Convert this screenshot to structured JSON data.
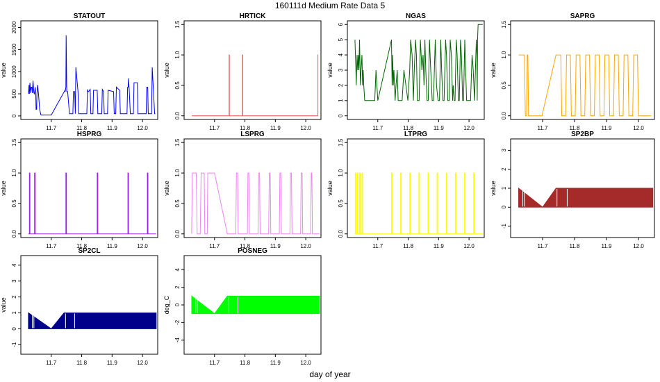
{
  "figure": {
    "title": "160111d   Medium Rate Data 5",
    "xlabel": "day of year"
  },
  "chart_data": [
    {
      "type": "line",
      "title": "STATOUT",
      "ylabel": "value",
      "xlabel": "",
      "color": "#0000ff",
      "xlim": [
        11.6,
        12.05
      ],
      "ylim": [
        -80,
        2150
      ],
      "xticks": [
        11.7,
        11.8,
        11.9,
        12.0
      ],
      "yticks": [
        0,
        500,
        1000,
        1500,
        2000
      ],
      "series": [
        {
          "x": [
            11.625,
            11.627,
            11.628,
            11.63,
            11.632,
            11.634,
            11.636,
            11.638,
            11.64,
            11.643,
            11.645,
            11.647,
            11.649,
            11.65,
            11.652,
            11.653,
            11.655,
            11.658,
            11.662,
            11.666,
            11.668,
            11.671,
            11.673,
            11.675,
            11.68,
            11.7,
            11.745,
            11.746,
            11.748,
            11.749,
            11.751,
            11.754,
            11.76,
            11.771,
            11.773,
            11.777,
            11.779,
            11.781,
            11.788,
            11.79,
            11.791,
            11.793,
            11.795,
            11.797,
            11.799,
            11.807,
            11.817,
            11.819,
            11.821,
            11.823,
            11.828,
            11.83,
            11.837,
            11.839,
            11.851,
            11.853,
            11.856,
            11.866,
            11.868,
            11.872,
            11.874,
            11.885,
            11.887,
            11.905,
            11.907,
            11.912,
            11.914,
            11.925,
            11.927,
            11.949,
            11.951,
            11.953,
            11.954,
            11.956,
            11.96,
            11.97,
            11.972,
            11.983,
            11.985,
            12.012,
            12.014,
            12.017,
            12.019,
            12.03,
            12.032,
            12.04,
            12.041,
            12.042
          ],
          "y": [
            500,
            700,
            500,
            750,
            520,
            650,
            650,
            520,
            800,
            520,
            500,
            650,
            500,
            150,
            150,
            500,
            700,
            500,
            150,
            20,
            20,
            20,
            20,
            20,
            20,
            20,
            580,
            550,
            650,
            1820,
            550,
            550,
            50,
            50,
            550,
            550,
            50,
            1100,
            550,
            50,
            50,
            50,
            50,
            50,
            50,
            50,
            50,
            600,
            550,
            550,
            600,
            50,
            50,
            580,
            580,
            50,
            50,
            50,
            600,
            550,
            50,
            50,
            580,
            550,
            50,
            50,
            650,
            580,
            50,
            50,
            650,
            650,
            850,
            650,
            50,
            50,
            750,
            750,
            50,
            50,
            650,
            650,
            50,
            50,
            1100,
            50,
            50,
            50
          ]
        }
      ]
    },
    {
      "type": "line",
      "title": "HRTICK",
      "ylabel": "value",
      "xlabel": "",
      "color": "#ee5555",
      "xlim": [
        11.6,
        12.05
      ],
      "ylim": [
        -0.06,
        1.56
      ],
      "xticks": [
        11.7,
        11.8,
        11.9,
        12.0
      ],
      "yticks": [
        0.0,
        0.5,
        1.0,
        1.5
      ],
      "series": [
        {
          "x": [
            11.625,
            11.748,
            11.748,
            11.749,
            11.749,
            11.792,
            11.792,
            11.793,
            11.793,
            12.04,
            12.04,
            12.041
          ],
          "y": [
            0,
            0,
            1,
            1,
            0,
            0,
            1,
            1,
            0,
            0,
            1,
            1
          ]
        }
      ]
    },
    {
      "type": "line",
      "title": "NGAS",
      "ylabel": "value",
      "xlabel": "",
      "color": "#006400",
      "xlim": [
        11.6,
        12.05
      ],
      "ylim": [
        -0.24,
        6.24
      ],
      "xticks": [
        11.7,
        11.8,
        11.9,
        12.0
      ],
      "yticks": [
        0,
        1,
        2,
        3,
        4,
        5,
        6
      ],
      "series": [
        {
          "x": [
            11.625,
            11.628,
            11.629,
            11.632,
            11.634,
            11.636,
            11.638,
            11.64,
            11.643,
            11.645,
            11.648,
            11.65,
            11.652,
            11.654,
            11.657,
            11.66,
            11.661,
            11.665,
            11.69,
            11.694,
            11.7,
            11.745,
            11.747,
            11.748,
            11.749,
            11.751,
            11.753,
            11.757,
            11.76,
            11.764,
            11.767,
            11.768,
            11.772,
            11.78,
            11.786,
            11.799,
            11.805,
            11.808,
            11.813,
            11.817,
            11.82,
            11.824,
            11.827,
            11.83,
            11.836,
            11.84,
            11.845,
            11.849,
            11.852,
            11.855,
            11.858,
            11.862,
            11.866,
            11.87,
            11.874,
            11.879,
            11.883,
            11.889,
            11.893,
            11.898,
            11.903,
            11.907,
            11.91,
            11.914,
            11.918,
            11.923,
            11.926,
            11.93,
            11.935,
            11.938,
            11.942,
            11.946,
            11.948,
            11.951,
            11.954,
            11.958,
            11.961,
            11.965,
            11.968,
            11.972,
            11.975,
            11.979,
            11.982,
            11.986,
            11.992,
            11.999,
            12.005,
            12.01,
            12.014,
            12.018,
            12.021,
            12.024,
            12.026,
            12.027,
            12.028,
            12.03,
            12.032,
            12.045
          ],
          "y": [
            5,
            3,
            2,
            4,
            3,
            4,
            3,
            5,
            2,
            3,
            4,
            2,
            3,
            2,
            1,
            1,
            1,
            1,
            1,
            3,
            1,
            5,
            2,
            3,
            4,
            2,
            3,
            1,
            2,
            3,
            1,
            1,
            1,
            1,
            3,
            1,
            3,
            5,
            4,
            1,
            3,
            5,
            4,
            1,
            1,
            5,
            3,
            4,
            2,
            5,
            3,
            1,
            1,
            5,
            3,
            1,
            1,
            5,
            2,
            1,
            1,
            5,
            3,
            1,
            1,
            5,
            4,
            1,
            1,
            5,
            4,
            1,
            2,
            1,
            1,
            5,
            4,
            1,
            1,
            5,
            4,
            1,
            1,
            5,
            1,
            1,
            1,
            4,
            3,
            1,
            3,
            5,
            4,
            1,
            5,
            6,
            6,
            6
          ]
        }
      ]
    },
    {
      "type": "line",
      "title": "SAPRG",
      "ylabel": "value",
      "xlabel": "",
      "color": "#ffa500",
      "xlim": [
        11.6,
        12.05
      ],
      "ylim": [
        -0.06,
        1.56
      ],
      "xticks": [
        11.7,
        11.8,
        11.9,
        12.0
      ],
      "yticks": [
        0.0,
        0.5,
        1.0,
        1.5
      ],
      "series": [
        {
          "x": [
            11.625,
            11.643,
            11.646,
            11.65,
            11.652,
            11.654,
            11.656,
            11.67,
            11.698,
            11.742,
            11.746,
            11.757,
            11.76,
            11.772,
            11.775,
            11.787,
            11.79,
            11.802,
            11.805,
            11.817,
            11.82,
            11.832,
            11.835,
            11.847,
            11.85,
            11.862,
            11.865,
            11.877,
            11.88,
            11.892,
            11.895,
            11.907,
            11.91,
            11.922,
            11.925,
            11.937,
            11.94,
            11.952,
            11.955,
            11.967,
            11.97,
            11.982,
            11.985,
            11.997,
            12.0,
            12.012,
            12.016,
            12.04
          ],
          "y": [
            1,
            1,
            0,
            0,
            1,
            1,
            0,
            0,
            0,
            1,
            1,
            1,
            0,
            0,
            1,
            1,
            0,
            0,
            1,
            1,
            0,
            0,
            1,
            1,
            0,
            0,
            1,
            1,
            0,
            0,
            1,
            1,
            0,
            0,
            1,
            1,
            0,
            0,
            1,
            1,
            0,
            0,
            1,
            1,
            0,
            0,
            0,
            0
          ]
        }
      ]
    },
    {
      "type": "line",
      "title": "HSPRG",
      "ylabel": "value",
      "xlabel": "",
      "color": "#a020f0",
      "xlim": [
        11.6,
        12.05
      ],
      "ylim": [
        -0.06,
        1.56
      ],
      "xticks": [
        11.7,
        11.8,
        11.9,
        12.0
      ],
      "yticks": [
        0.0,
        0.5,
        1.0,
        1.5
      ],
      "series": [
        {
          "x": [
            11.625,
            11.628,
            11.628,
            11.63,
            11.63,
            11.645,
            11.645,
            11.647,
            11.647,
            11.748,
            11.748,
            11.75,
            11.75,
            11.851,
            11.851,
            11.853,
            11.853,
            11.952,
            11.952,
            11.954,
            11.954,
            12.016,
            12.016,
            12.018,
            12.018,
            12.045
          ],
          "y": [
            0,
            0,
            1,
            1,
            0,
            0,
            1,
            1,
            0,
            0,
            1,
            1,
            0,
            0,
            1,
            1,
            0,
            0,
            1,
            1,
            0,
            0,
            1,
            1,
            0,
            0
          ]
        }
      ]
    },
    {
      "type": "line",
      "title": "LSPRG",
      "ylabel": "value",
      "xlabel": "",
      "color": "#ee82ee",
      "xlim": [
        11.6,
        12.05
      ],
      "ylim": [
        -0.06,
        1.56
      ],
      "xticks": [
        11.7,
        11.8,
        11.9,
        12.0
      ],
      "yticks": [
        0.0,
        0.5,
        1.0,
        1.5
      ],
      "series": [
        {
          "x": [
            11.625,
            11.627,
            11.63,
            11.64,
            11.643,
            11.653,
            11.656,
            11.666,
            11.668,
            11.676,
            11.678,
            11.698,
            11.7,
            11.742,
            11.744,
            11.746,
            11.748,
            11.77,
            11.772,
            11.776,
            11.778,
            11.808,
            11.81,
            11.813,
            11.815,
            11.843,
            11.845,
            11.848,
            11.85,
            11.878,
            11.88,
            11.883,
            11.885,
            11.913,
            11.915,
            11.918,
            11.92,
            11.948,
            11.95,
            11.953,
            11.955,
            11.983,
            11.985,
            11.988,
            11.99,
            12.016,
            12.018,
            12.02,
            12.022,
            12.045
          ],
          "y": [
            0,
            1,
            1,
            1,
            0,
            0,
            1,
            1,
            0,
            0,
            1,
            1,
            1,
            0,
            0,
            0,
            0,
            0,
            1,
            1,
            0,
            0,
            1,
            1,
            0,
            0,
            1,
            1,
            0,
            0,
            1,
            1,
            0,
            0,
            1,
            1,
            0,
            0,
            1,
            1,
            0,
            0,
            1,
            1,
            0,
            0,
            1,
            1,
            0,
            0
          ]
        }
      ]
    },
    {
      "type": "line",
      "title": "LTPRG",
      "ylabel": "value",
      "xlabel": "",
      "color": "#ffff00",
      "xlim": [
        11.6,
        12.05
      ],
      "ylim": [
        -0.06,
        1.56
      ],
      "xticks": [
        11.7,
        11.8,
        11.9,
        12.0
      ],
      "yticks": [
        0.0,
        0.5,
        1.0,
        1.5
      ],
      "series": [
        {
          "x": [
            11.625,
            11.626,
            11.626,
            11.628,
            11.628,
            11.633,
            11.633,
            11.635,
            11.635,
            11.64,
            11.64,
            11.642,
            11.642,
            11.648,
            11.648,
            11.65,
            11.65,
            11.745,
            11.745,
            11.747,
            11.747,
            11.775,
            11.775,
            11.777,
            11.777,
            11.805,
            11.805,
            11.807,
            11.807,
            11.835,
            11.835,
            11.837,
            11.837,
            11.865,
            11.865,
            11.867,
            11.867,
            11.895,
            11.895,
            11.897,
            11.897,
            11.925,
            11.925,
            11.927,
            11.927,
            11.955,
            11.955,
            11.957,
            11.957,
            11.985,
            11.985,
            11.987,
            11.987,
            12.015,
            12.015,
            12.017,
            12.017,
            12.045
          ],
          "y": [
            0,
            0,
            1,
            1,
            0,
            0,
            1,
            1,
            0,
            0,
            1,
            1,
            0,
            0,
            1,
            1,
            0,
            0,
            1,
            1,
            0,
            0,
            1,
            1,
            0,
            0,
            1,
            1,
            0,
            0,
            1,
            1,
            0,
            0,
            1,
            1,
            0,
            0,
            1,
            1,
            0,
            0,
            1,
            1,
            0,
            0,
            1,
            1,
            0,
            0,
            1,
            1,
            0,
            0,
            1,
            1,
            0,
            0
          ]
        }
      ]
    },
    {
      "type": "area",
      "title": "SP2BP",
      "ylabel": "value",
      "xlabel": "",
      "color": "#a52a2a",
      "xlim": [
        11.6,
        12.05
      ],
      "ylim": [
        -1.6,
        3.6
      ],
      "xticks": [
        11.7,
        11.8,
        11.9,
        12.0
      ],
      "yticks": [
        -1,
        0,
        1,
        2,
        3
      ],
      "series": [
        {
          "x": [
            11.625,
            11.7,
            11.742,
            12.045
          ],
          "y": [
            1,
            0,
            1,
            1
          ],
          "y_low": [
            0,
            0,
            0,
            0
          ]
        }
      ],
      "note_gaps": [
        11.638,
        11.643,
        11.745,
        11.777
      ]
    },
    {
      "type": "area",
      "title": "SP2CL",
      "ylabel": "value",
      "xlabel": "",
      "color": "#00008b",
      "xlim": [
        11.6,
        12.05
      ],
      "ylim": [
        -1.6,
        4.6
      ],
      "xticks": [
        11.7,
        11.8,
        11.9,
        12.0
      ],
      "yticks": [
        -1,
        0,
        1,
        2,
        3,
        4
      ],
      "series": [
        {
          "x": [
            11.625,
            11.7,
            11.742,
            12.045
          ],
          "y": [
            1,
            0,
            1,
            1
          ],
          "y_low": [
            0,
            0,
            0,
            0
          ]
        }
      ],
      "note_gaps": [
        11.638,
        11.643,
        11.747,
        11.777
      ]
    },
    {
      "type": "area",
      "title": "POSNEG",
      "ylabel": "deg_C",
      "xlabel": "",
      "color": "#00ff00",
      "xlim": [
        11.6,
        12.05
      ],
      "ylim": [
        -5.6,
        5.6
      ],
      "xticks": [
        11.7,
        11.8,
        11.9,
        12.0
      ],
      "yticks": [
        -4,
        -2,
        0,
        2,
        4
      ],
      "series": [
        {
          "x": [
            11.625,
            11.7,
            11.742,
            12.045
          ],
          "y": [
            1,
            -1,
            1,
            1
          ],
          "y_low": [
            -1,
            -1,
            -1,
            -1
          ]
        }
      ],
      "note_gaps": [
        11.638,
        11.643,
        11.747,
        11.777
      ]
    }
  ]
}
